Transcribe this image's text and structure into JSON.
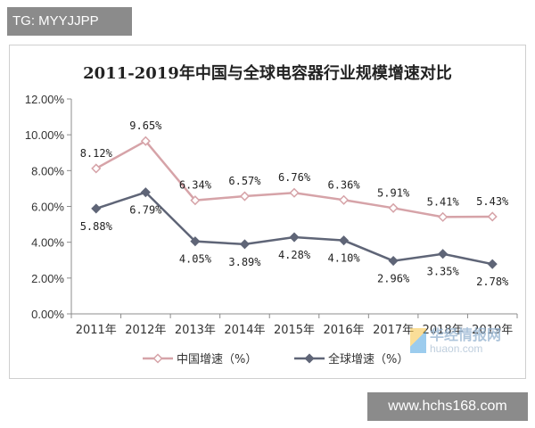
{
  "watermark_tag": "TG: MYYJJPP",
  "site_tag": "www.hchs168.com",
  "watermark_logo": {
    "cn": "华经情报网",
    "en": "huaon.com"
  },
  "chart_data": {
    "type": "line",
    "title": "2011-2019年中国与全球电容器行业规模增速对比",
    "xlabel": "",
    "ylabel": "",
    "x": [
      "2011年",
      "2012年",
      "2013年",
      "2014年",
      "2015年",
      "2016年",
      "2017年",
      "2018年",
      "2019年"
    ],
    "y_ticks": [
      "0.00%",
      "2.00%",
      "4.00%",
      "6.00%",
      "8.00%",
      "10.00%",
      "12.00%"
    ],
    "ylim": [
      0,
      12
    ],
    "grid": false,
    "legend_position": "bottom",
    "series": [
      {
        "name": "中国增速（%）",
        "color": "#d6a3a8",
        "marker": "diamond-hollow",
        "values": [
          8.12,
          9.65,
          6.34,
          6.57,
          6.76,
          6.36,
          5.91,
          5.41,
          5.43
        ],
        "labels": [
          "8.12%",
          "9.65%",
          "6.34%",
          "6.57%",
          "6.76%",
          "6.36%",
          "5.91%",
          "5.41%",
          "5.43%"
        ],
        "label_placement": "above"
      },
      {
        "name": "全球增速（%）",
        "color": "#5f6577",
        "marker": "diamond-filled",
        "values": [
          5.88,
          6.79,
          4.05,
          3.89,
          4.28,
          4.1,
          2.96,
          3.35,
          2.78
        ],
        "labels": [
          "5.88%",
          "6.79%",
          "4.05%",
          "3.89%",
          "4.28%",
          "4.10%",
          "2.96%",
          "3.35%",
          "2.78%"
        ],
        "label_placement": "below"
      }
    ]
  }
}
